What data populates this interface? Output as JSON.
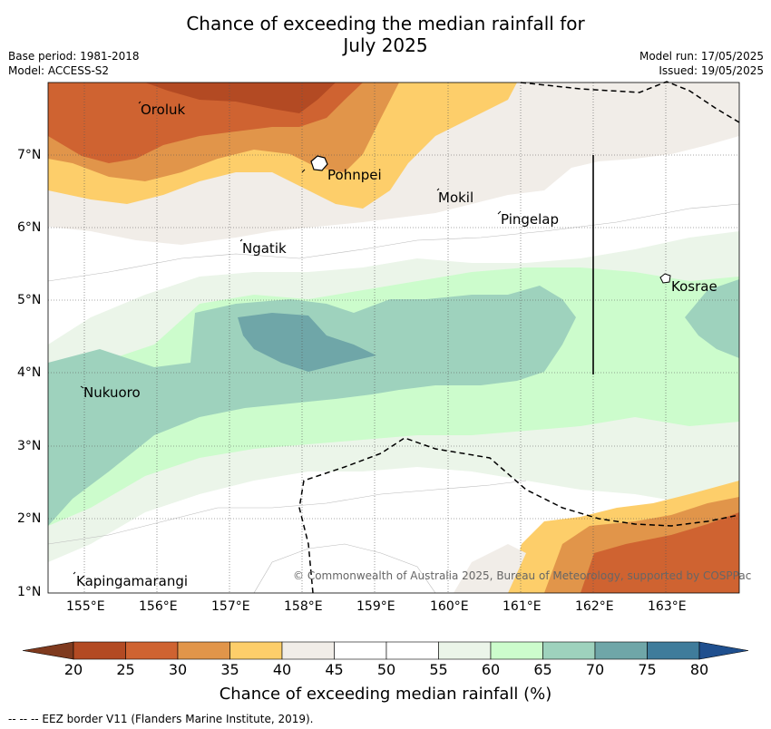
{
  "title_line1": "Chance of exceeding the median rainfall for",
  "title_line2": "July 2025",
  "base_period": "Base period: 1981-2018",
  "model": "Model: ACCESS-S2",
  "model_run": "Model run: 17/05/2025",
  "issued": "Issued: 19/05/2025",
  "places": [
    "Oroluk",
    "Pohnpei",
    "Mokil",
    "Pingelap",
    "Ngatik",
    "Kosrae",
    "Nukuoro",
    "Kapingamarangi"
  ],
  "lat_labels": [
    "7°N",
    "6°N",
    "5°N",
    "4°N",
    "3°N",
    "2°N",
    "1°N"
  ],
  "lon_labels": [
    "155°E",
    "156°E",
    "157°E",
    "158°E",
    "159°E",
    "160°E",
    "161°E",
    "162°E",
    "163°E"
  ],
  "copyright": "© Commonwealth of Australia 2025, Bureau of Meteorology, supported by COSPPac",
  "colorbar": {
    "labels": [
      "20",
      "25",
      "30",
      "35",
      "40",
      "45",
      "50",
      "55",
      "60",
      "65",
      "70",
      "75",
      "80"
    ],
    "colors": [
      "#7f3a1e",
      "#b34a23",
      "#cf6331",
      "#e1954a",
      "#fdce6a",
      "#f1ede8",
      "#ffffff",
      "#ffffff",
      "#ebf5e9",
      "#ccfccc",
      "#9ed2bd",
      "#6fa6a8",
      "#3f7c9b",
      "#1f4f8e"
    ],
    "title": "Chance of exceeding median rainfall (%)"
  },
  "footer": "--  --  -- EEZ border V11 (Flanders Marine Institute, 2019)."
}
